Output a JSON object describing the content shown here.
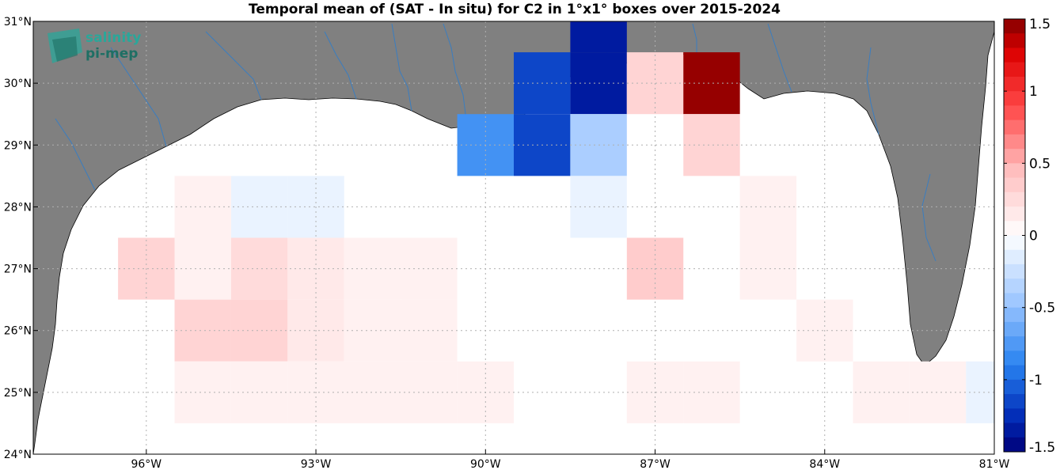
{
  "title": "Temporal mean of (SAT - In situ) for C2 in 1°x1° boxes over 2015-2024",
  "logo": {
    "line1": "salinity",
    "line2": "pi-mep"
  },
  "map": {
    "lon_range": [
      -98,
      -81
    ],
    "lat_range": [
      24,
      31
    ],
    "x_ticks": [
      {
        "value": -96,
        "label": "96°W"
      },
      {
        "value": -93,
        "label": "93°W"
      },
      {
        "value": -90,
        "label": "90°W"
      },
      {
        "value": -87,
        "label": "87°W"
      },
      {
        "value": -84,
        "label": "84°W"
      },
      {
        "value": -81,
        "label": "81°W"
      }
    ],
    "y_ticks": [
      {
        "value": 24,
        "label": "24°N"
      },
      {
        "value": 25,
        "label": "25°N"
      },
      {
        "value": 26,
        "label": "26°N"
      },
      {
        "value": 27,
        "label": "27°N"
      },
      {
        "value": 28,
        "label": "28°N"
      },
      {
        "value": 29,
        "label": "29°N"
      },
      {
        "value": 30,
        "label": "30°N"
      },
      {
        "value": 31,
        "label": "31°N"
      }
    ],
    "grid": true,
    "land_color": "#808080",
    "river_color": "#3a7dc0"
  },
  "chart_data": {
    "type": "heatmap",
    "cell_size_deg": 1,
    "colorbar": {
      "range": [
        -1.5,
        1.5
      ],
      "step": 0.1,
      "ticks": [
        {
          "value": 1.5,
          "label": "1.5"
        },
        {
          "value": 1,
          "label": "1"
        },
        {
          "value": 0.5,
          "label": "0.5"
        },
        {
          "value": 0,
          "label": "0"
        },
        {
          "value": -0.5,
          "label": "-0.5"
        },
        {
          "value": -1,
          "label": "-1"
        },
        {
          "value": -1.5,
          "label": "-1.5"
        }
      ]
    },
    "cells": [
      {
        "lon": -95,
        "lat": 28,
        "value": 0.1
      },
      {
        "lon": -94,
        "lat": 28,
        "value": -0.1
      },
      {
        "lon": -93,
        "lat": 28,
        "value": -0.1
      },
      {
        "lon": -96,
        "lat": 27,
        "value": 0.3
      },
      {
        "lon": -95,
        "lat": 27,
        "value": 0.1
      },
      {
        "lon": -94,
        "lat": 27,
        "value": 0.25
      },
      {
        "lon": -93,
        "lat": 27,
        "value": 0.15
      },
      {
        "lon": -92,
        "lat": 27,
        "value": 0.1
      },
      {
        "lon": -91,
        "lat": 27,
        "value": 0.1
      },
      {
        "lon": -95,
        "lat": 26,
        "value": 0.3
      },
      {
        "lon": -94,
        "lat": 26,
        "value": 0.3
      },
      {
        "lon": -93,
        "lat": 26,
        "value": 0.15
      },
      {
        "lon": -92,
        "lat": 26,
        "value": 0.1
      },
      {
        "lon": -91,
        "lat": 26,
        "value": 0.1
      },
      {
        "lon": -95,
        "lat": 25,
        "value": 0.1
      },
      {
        "lon": -94,
        "lat": 25,
        "value": 0.1
      },
      {
        "lon": -93,
        "lat": 25,
        "value": 0.1
      },
      {
        "lon": -92,
        "lat": 25,
        "value": 0.1
      },
      {
        "lon": -91,
        "lat": 25,
        "value": 0.1
      },
      {
        "lon": -90,
        "lat": 25,
        "value": 0.1
      },
      {
        "lon": -90,
        "lat": 29,
        "value": -0.8
      },
      {
        "lon": -89,
        "lat": 29,
        "value": -1.15
      },
      {
        "lon": -89,
        "lat": 30,
        "value": -1.15
      },
      {
        "lon": -88,
        "lat": 30,
        "value": -1.35
      },
      {
        "lon": -88,
        "lat": 31,
        "value": -1.35
      },
      {
        "lon": -88,
        "lat": 29,
        "value": -0.4
      },
      {
        "lon": -88,
        "lat": 28,
        "value": -0.1
      },
      {
        "lon": -87,
        "lat": 30,
        "value": 0.3
      },
      {
        "lon": -87,
        "lat": 27,
        "value": 0.35
      },
      {
        "lon": -87,
        "lat": 25,
        "value": 0.1
      },
      {
        "lon": -86,
        "lat": 25,
        "value": 0.1
      },
      {
        "lon": -86,
        "lat": 30,
        "value": 1.45
      },
      {
        "lon": -86,
        "lat": 29,
        "value": 0.3
      },
      {
        "lon": -85,
        "lat": 28,
        "value": 0.1
      },
      {
        "lon": -85,
        "lat": 27,
        "value": 0.1
      },
      {
        "lon": -84,
        "lat": 26,
        "value": 0.1
      },
      {
        "lon": -83,
        "lat": 25,
        "value": 0.1
      },
      {
        "lon": -82,
        "lat": 25,
        "value": 0.1
      },
      {
        "lon": -81,
        "lat": 25,
        "value": -0.1
      }
    ]
  }
}
